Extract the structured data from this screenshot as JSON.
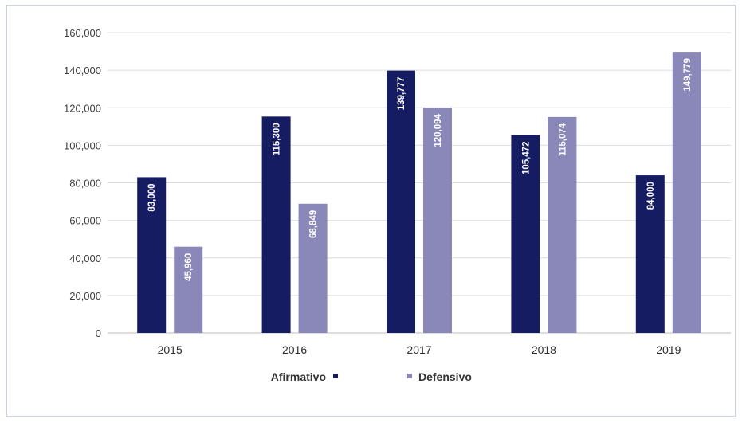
{
  "chart_data": {
    "type": "bar",
    "categories": [
      "2015",
      "2016",
      "2017",
      "2018",
      "2019"
    ],
    "series": [
      {
        "name": "Afirmativo",
        "values": [
          83000,
          115300,
          139777,
          105472,
          84000
        ],
        "labels": [
          "83,000",
          "115,300",
          "139,777",
          "105,472",
          "84,000"
        ],
        "color": "#161c62"
      },
      {
        "name": "Defensivo",
        "values": [
          45960,
          68849,
          120094,
          115074,
          149779
        ],
        "labels": [
          "45,960",
          "68,849",
          "120,094",
          "115,074",
          "149,779"
        ],
        "color": "#8988b9"
      }
    ],
    "ylim": [
      0,
      160000
    ],
    "yticks": [
      "0",
      "20,000",
      "40,000",
      "60,000",
      "80,000",
      "100,000",
      "120,000",
      "140,000",
      "160,000"
    ],
    "grid": true,
    "legend_position": "bottom",
    "title": "",
    "xlabel": "",
    "ylabel": ""
  }
}
